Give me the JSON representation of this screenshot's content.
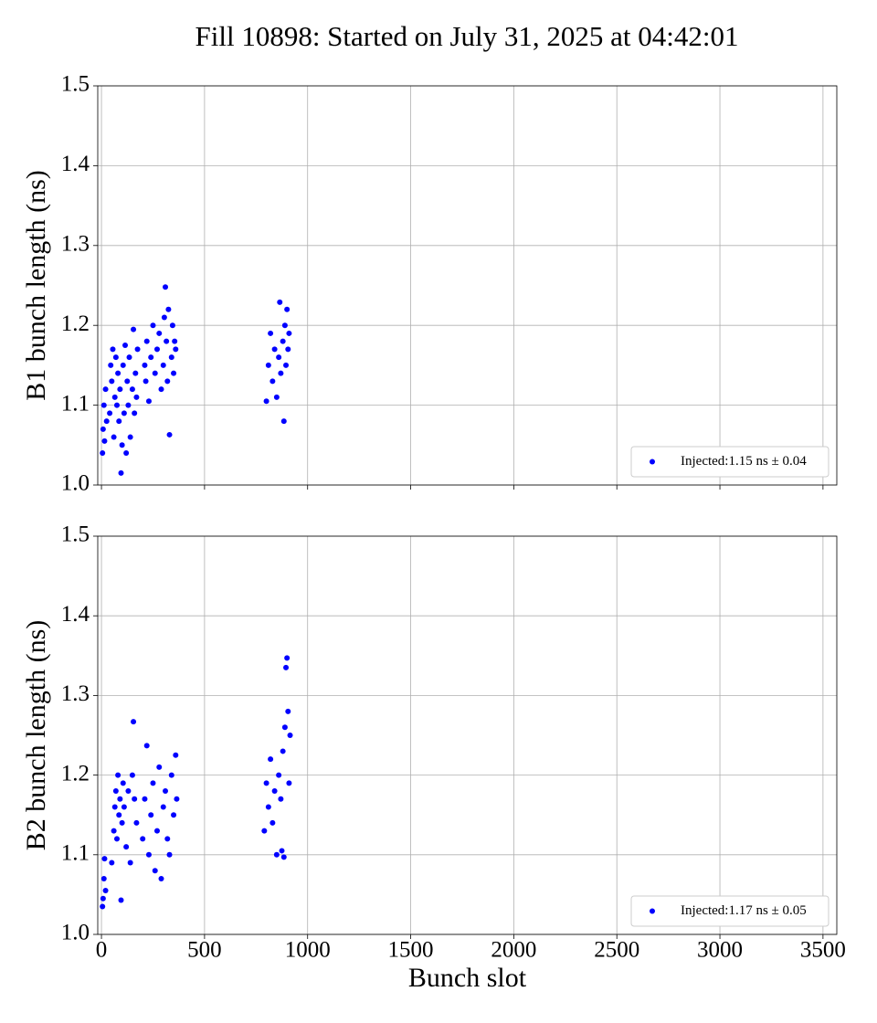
{
  "title": "Fill 10898: Started on July 31, 2025 at 04:42:01",
  "chart_data": [
    {
      "type": "scatter",
      "ylabel": "B1 bunch length (ns)",
      "legend": "lower right",
      "grid": true,
      "xlim": [
        -18,
        3567
      ],
      "ylim": [
        1.0,
        1.5
      ],
      "xticks": [
        0,
        500,
        1000,
        1500,
        2000,
        2500,
        3000,
        3500
      ],
      "yticks": [
        {
          "value": 1,
          "label": "1.0"
        },
        1.1,
        1.2,
        1.3,
        1.4,
        1.5
      ],
      "series": [
        {
          "name": "Injected:1.15 ns ± 0.04",
          "color": "#0000ff",
          "x": [
            5,
            8,
            12,
            15,
            20,
            25,
            40,
            45,
            50,
            55,
            60,
            65,
            70,
            75,
            80,
            85,
            90,
            95,
            100,
            105,
            110,
            115,
            120,
            125,
            130,
            135,
            140,
            150,
            155,
            160,
            165,
            170,
            175,
            210,
            215,
            220,
            230,
            240,
            250,
            260,
            270,
            280,
            290,
            300,
            305,
            310,
            315,
            320,
            325,
            330,
            340,
            345,
            350,
            355,
            360,
            800,
            810,
            820,
            830,
            840,
            850,
            860,
            865,
            870,
            880,
            885,
            890,
            895,
            900,
            905,
            910
          ],
          "values": [
            1.04,
            1.07,
            1.1,
            1.055,
            1.12,
            1.08,
            1.09,
            1.15,
            1.13,
            1.17,
            1.06,
            1.11,
            1.16,
            1.1,
            1.14,
            1.08,
            1.12,
            1.015,
            1.05,
            1.15,
            1.09,
            1.175,
            1.04,
            1.13,
            1.1,
            1.16,
            1.06,
            1.12,
            1.195,
            1.09,
            1.14,
            1.11,
            1.17,
            1.15,
            1.13,
            1.18,
            1.105,
            1.16,
            1.2,
            1.14,
            1.17,
            1.19,
            1.12,
            1.15,
            1.21,
            1.248,
            1.18,
            1.13,
            1.22,
            1.063,
            1.16,
            1.2,
            1.14,
            1.18,
            1.17,
            1.105,
            1.15,
            1.19,
            1.13,
            1.17,
            1.11,
            1.16,
            1.229,
            1.14,
            1.18,
            1.08,
            1.2,
            1.15,
            1.22,
            1.17,
            1.19
          ]
        }
      ]
    },
    {
      "type": "scatter",
      "ylabel": "B2 bunch length (ns)",
      "xlabel": "Bunch slot",
      "legend": "lower right",
      "grid": true,
      "xlim": [
        -18,
        3567
      ],
      "ylim": [
        1.0,
        1.5
      ],
      "xticks": [
        0,
        500,
        1000,
        1500,
        2000,
        2500,
        3000,
        3500
      ],
      "yticks": [
        {
          "value": 1,
          "label": "1.0"
        },
        1.1,
        1.2,
        1.3,
        1.4,
        1.5
      ],
      "series": [
        {
          "name": "Injected:1.17 ns ± 0.05",
          "color": "#0000ff",
          "x": [
            5,
            8,
            12,
            15,
            20,
            50,
            60,
            65,
            70,
            75,
            80,
            85,
            90,
            95,
            100,
            105,
            110,
            120,
            130,
            140,
            150,
            155,
            160,
            170,
            200,
            210,
            220,
            230,
            240,
            250,
            260,
            270,
            280,
            290,
            300,
            310,
            320,
            330,
            340,
            350,
            360,
            365,
            790,
            800,
            810,
            820,
            830,
            840,
            850,
            860,
            870,
            875,
            880,
            885,
            890,
            895,
            900,
            905,
            910,
            915
          ],
          "values": [
            1.035,
            1.045,
            1.07,
            1.095,
            1.055,
            1.09,
            1.13,
            1.16,
            1.18,
            1.12,
            1.2,
            1.15,
            1.17,
            1.043,
            1.14,
            1.19,
            1.16,
            1.11,
            1.18,
            1.09,
            1.2,
            1.267,
            1.17,
            1.14,
            1.12,
            1.17,
            1.237,
            1.1,
            1.15,
            1.19,
            1.08,
            1.13,
            1.21,
            1.07,
            1.16,
            1.18,
            1.12,
            1.1,
            1.2,
            1.15,
            1.225,
            1.17,
            1.13,
            1.19,
            1.16,
            1.22,
            1.14,
            1.18,
            1.1,
            1.2,
            1.17,
            1.105,
            1.23,
            1.097,
            1.26,
            1.335,
            1.347,
            1.28,
            1.19,
            1.25
          ]
        }
      ]
    }
  ]
}
